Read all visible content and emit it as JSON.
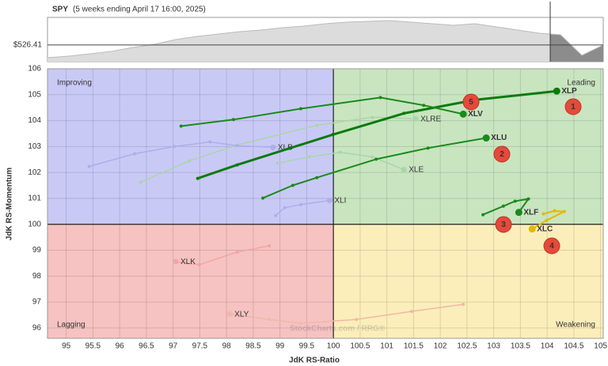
{
  "chart_data": [
    {
      "type": "area",
      "title": "SPY",
      "subtitle": "(5 weeks ending April 17 16:00, 2025)",
      "values": [
        506.25,
        508.75,
        512.5,
        516.25,
        522.5,
        527.5,
        535,
        540,
        543.75,
        547.5,
        550,
        553.75,
        556.25,
        560,
        562.5,
        563.75,
        565,
        562.5,
        560,
        557.5,
        560,
        555,
        550,
        545,
        542.5,
        510,
        526.41
      ],
      "ylim": [
        500,
        570
      ],
      "color": "#dcdcdc",
      "price_line": {
        "value": 526.41,
        "label": "$526.41"
      }
    },
    {
      "type": "line",
      "xlabel": "JdK RS-Ratio",
      "ylabel": "JdK RS-Momentum",
      "xlim": [
        94.65,
        105.05
      ],
      "ylim": [
        95.6,
        106
      ],
      "xticks": [
        95,
        95.5,
        96,
        96.5,
        97,
        97.5,
        98,
        98.5,
        99,
        99.5,
        100,
        100.5,
        101,
        101.5,
        102,
        102.5,
        103,
        103.5,
        104,
        104.5,
        105
      ],
      "yticks": [
        96,
        97,
        98,
        99,
        100,
        101,
        102,
        103,
        104,
        105,
        106
      ],
      "grid": true,
      "quadrants": [
        {
          "name": "Improving",
          "color": "#c9c9f6",
          "text_color": "#3a55c8"
        },
        {
          "name": "Leading",
          "color": "#c8e5c0",
          "text_color": "#2a8a2a"
        },
        {
          "name": "Lagging",
          "color": "#f6c2c2",
          "text_color": "#cc3333"
        },
        {
          "name": "Weakening",
          "color": "#fbeebb",
          "text_color": "#d4a017"
        }
      ],
      "watermark": "StockCharts.com / RRG®",
      "badges": [
        "1",
        "2",
        "3",
        "4",
        "5"
      ],
      "series": [
        {
          "name": "XLRE",
          "color": "#a9d6a9",
          "x": [
            96.39,
            97.31,
            98.2,
            99.69,
            100.73,
            101.54
          ],
          "values": [
            101.62,
            102.45,
            103.06,
            103.82,
            104.13,
            104.07
          ]
        },
        {
          "name": "XLB",
          "color": "#aeaeea",
          "x": [
            95.43,
            96.28,
            97.02,
            97.69,
            98.2,
            98.87
          ],
          "values": [
            102.23,
            102.72,
            103.0,
            103.18,
            103.03,
            102.97
          ]
        },
        {
          "name": "XLE",
          "color": "#a9d6a9",
          "x": [
            98.95,
            99.54,
            100.13,
            100.73,
            101.32
          ],
          "values": [
            102.35,
            102.6,
            102.78,
            102.6,
            102.11
          ]
        },
        {
          "name": "XLI",
          "color": "#aeaeea",
          "x": [
            98.92,
            99.09,
            99.39,
            99.93
          ],
          "values": [
            100.34,
            100.64,
            100.76,
            100.92
          ]
        },
        {
          "name": "XLK",
          "color": "#f0a6a6",
          "x": [
            98.8,
            98.2,
            97.49,
            97.05
          ],
          "values": [
            99.17,
            98.93,
            98.44,
            98.56
          ]
        },
        {
          "name": "XLY",
          "color": "#f0b8a6",
          "x": [
            102.43,
            101.47,
            100.43,
            99.39,
            98.8,
            98.06
          ],
          "values": [
            96.91,
            96.64,
            96.33,
            96.18,
            96.33,
            96.54
          ]
        },
        {
          "name": "XLP",
          "color": "#0c7a0c",
          "x": [
            97.46,
            98.2,
            99.99,
            101.32,
            102.66,
            104.18
          ],
          "values": [
            101.77,
            102.29,
            103.46,
            104.28,
            104.8,
            105.14
          ]
        },
        {
          "name": "XLV",
          "color": "#1a8a1a",
          "x": [
            97.15,
            98.13,
            99.39,
            100.88,
            101.69,
            102.43
          ],
          "values": [
            103.79,
            104.04,
            104.46,
            104.89,
            104.59,
            104.25
          ]
        },
        {
          "name": "XLU",
          "color": "#1a8a1a",
          "x": [
            98.68,
            99.24,
            99.69,
            100.8,
            101.77,
            102.86
          ],
          "values": [
            101.01,
            101.5,
            101.8,
            102.51,
            102.94,
            103.33
          ]
        },
        {
          "name": "XLF",
          "color": "#1a8a1a",
          "x": [
            102.8,
            103.18,
            103.4,
            103.65,
            103.47
          ],
          "values": [
            100.37,
            100.7,
            100.89,
            100.98,
            100.46
          ]
        },
        {
          "name": "XLC",
          "color": "#e6b800",
          "x": [
            103.93,
            104.14,
            104.32,
            103.99,
            103.72
          ],
          "values": [
            100.4,
            100.52,
            100.49,
            100.15,
            99.82
          ]
        }
      ]
    }
  ]
}
